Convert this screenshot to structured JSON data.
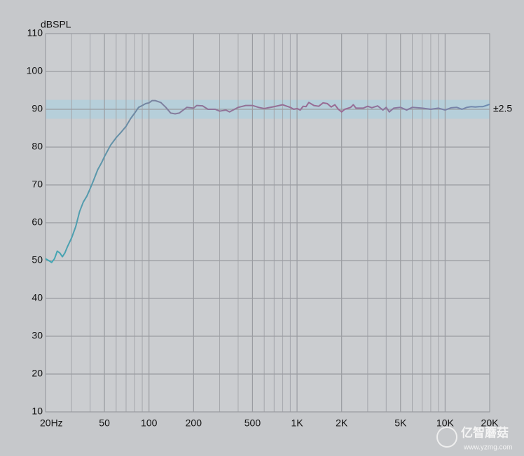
{
  "chart_data": {
    "type": "line",
    "y_label": "dBSPL",
    "xscale": "log",
    "xlim": [
      20,
      20000
    ],
    "ylim": [
      10,
      110
    ],
    "xticks": [
      {
        "value": 20,
        "label": "20Hz"
      },
      50,
      100,
      200,
      500,
      {
        "value": 1000,
        "label": "1K"
      },
      {
        "value": 2000,
        "label": "2K"
      },
      {
        "value": 5000,
        "label": "5K"
      },
      {
        "value": 10000,
        "label": "10K"
      },
      {
        "value": 20000,
        "label": "20K"
      }
    ],
    "xminorticks": [
      30,
      40,
      60,
      70,
      80,
      90,
      300,
      400,
      600,
      700,
      800,
      900,
      3000,
      4000,
      6000,
      7000,
      8000,
      9000
    ],
    "yticks": [
      10,
      20,
      30,
      40,
      50,
      60,
      70,
      80,
      90,
      100,
      110
    ],
    "grid": true,
    "band": {
      "center": 90,
      "halfwidth": 2.5,
      "label": "±2.5",
      "color": "#a6d2e2"
    },
    "x": [
      20,
      21,
      22,
      23,
      24,
      25,
      26,
      27,
      28,
      30,
      32,
      34,
      36,
      38,
      40,
      42,
      45,
      48,
      50,
      55,
      60,
      65,
      70,
      75,
      80,
      85,
      90,
      95,
      100,
      105,
      110,
      120,
      130,
      140,
      150,
      160,
      180,
      200,
      210,
      230,
      250,
      280,
      300,
      330,
      350,
      400,
      450,
      500,
      550,
      600,
      700,
      800,
      900,
      950,
      1000,
      1050,
      1100,
      1150,
      1200,
      1300,
      1400,
      1500,
      1600,
      1700,
      1800,
      1900,
      2000,
      2100,
      2300,
      2400,
      2500,
      2800,
      3000,
      3200,
      3500,
      3800,
      4000,
      4200,
      4500,
      5000,
      5500,
      6000,
      7000,
      8000,
      9000,
      10000,
      11000,
      12000,
      13000,
      14000,
      15000,
      16000,
      17000,
      18000,
      19000,
      20000
    ],
    "series": [
      {
        "gradient": [
          "#3fa9b5",
          "#8e7598",
          "#9a6a93",
          "#6d8cb0"
        ],
        "values": [
          50.5,
          50,
          49.5,
          50.5,
          52.5,
          52,
          51,
          52,
          53.5,
          56,
          59,
          63,
          65.5,
          67,
          69,
          71,
          74,
          76,
          77.5,
          80.5,
          82.5,
          84,
          85.5,
          87.5,
          89,
          90.5,
          91,
          91.5,
          91.7,
          92.3,
          92.3,
          91.8,
          90.5,
          89,
          88.8,
          89,
          90.5,
          90.3,
          91,
          90.9,
          90,
          90,
          89.5,
          89.8,
          89.3,
          90.5,
          91,
          91,
          90.5,
          90.2,
          90.7,
          91.2,
          90.5,
          90,
          90.2,
          89.8,
          90.8,
          90.7,
          91.8,
          91,
          90.8,
          91.7,
          91.5,
          90.6,
          91.2,
          90,
          89.3,
          90,
          90.5,
          91.2,
          90.3,
          90.3,
          90.8,
          90.4,
          90.9,
          89.8,
          90.5,
          89.3,
          90.3,
          90.5,
          89.8,
          90.5,
          90.3,
          90,
          90.3,
          89.8,
          90.4,
          90.5,
          90,
          90.5,
          90.7,
          90.6,
          90.7,
          90.7,
          91,
          91.3
        ]
      }
    ],
    "watermark": {
      "text": "亿智蘑菇",
      "url": "www.yzmg.com"
    }
  }
}
